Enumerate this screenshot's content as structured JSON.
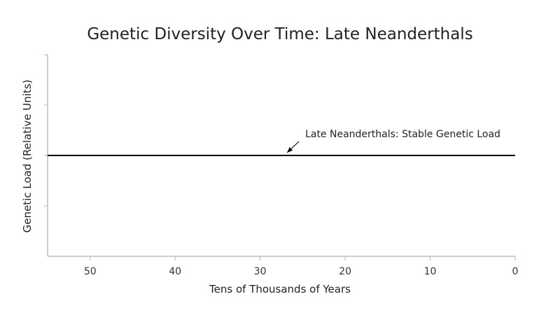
{
  "chart_data": {
    "type": "line",
    "title": "Genetic Diversity Over Time: Late Neanderthals",
    "xlabel": "Tens of Thousands of Years",
    "ylabel": "Genetic Load (Relative Units)",
    "xlim": [
      55,
      0
    ],
    "ylim": [
      0,
      4
    ],
    "x_ticks": [
      50,
      40,
      30,
      20,
      10,
      0
    ],
    "x_tick_labels": [
      "50",
      "40",
      "30",
      "20",
      "10",
      "0"
    ],
    "y_ticks": [
      1,
      2,
      3,
      4
    ],
    "grid": false,
    "series": [
      {
        "x": [
          55,
          0
        ],
        "values": [
          2,
          2
        ],
        "color": "#000000"
      }
    ],
    "annotations": [
      {
        "text": "Late Neanderthals: Stable Genetic Load",
        "point": [
          27,
          2
        ]
      }
    ]
  }
}
